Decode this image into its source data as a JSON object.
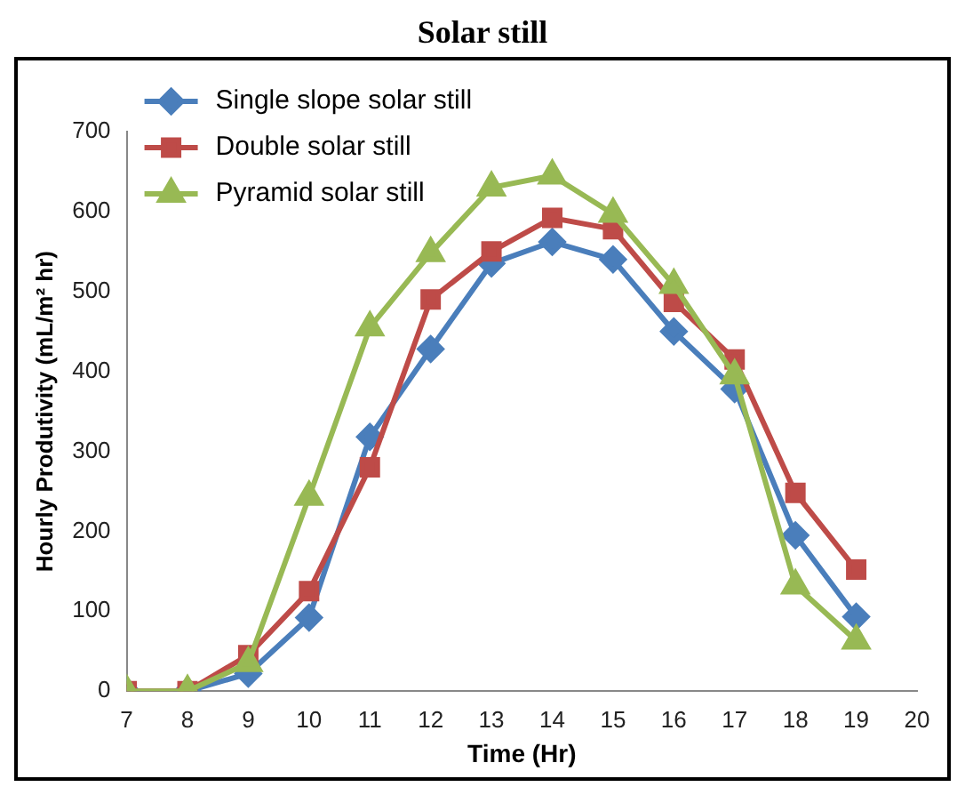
{
  "chart_data": {
    "type": "line",
    "title": "Solar still",
    "xlabel": "Time (Hr)",
    "ylabel": "Hourly Produtivity (mL/m² hr)",
    "x": [
      7,
      8,
      9,
      10,
      11,
      12,
      13,
      14,
      15,
      16,
      17,
      18,
      19
    ],
    "series": [
      {
        "name": "Single slope solar still",
        "color": "#4a7ebb",
        "marker": "diamond",
        "values": [
          0,
          0,
          22,
          92,
          318,
          428,
          535,
          562,
          540,
          450,
          378,
          195,
          93
        ]
      },
      {
        "name": "Double solar still",
        "color": "#be4b48",
        "marker": "square",
        "values": [
          0,
          0,
          45,
          125,
          280,
          490,
          550,
          592,
          578,
          487,
          415,
          248,
          152
        ]
      },
      {
        "name": "Pyramid solar still",
        "color": "#98b954",
        "marker": "triangle",
        "values": [
          0,
          0,
          35,
          243,
          455,
          548,
          630,
          645,
          597,
          508,
          395,
          132,
          63
        ]
      }
    ],
    "xlim": [
      7,
      20
    ],
    "xticks": [
      7,
      8,
      9,
      10,
      11,
      12,
      13,
      14,
      15,
      16,
      17,
      18,
      19,
      20
    ],
    "ylim": [
      0,
      700
    ],
    "yticks": [
      0,
      100,
      200,
      300,
      400,
      500,
      600,
      700
    ],
    "grid": false,
    "legend": "top left",
    "line_style": "solid"
  }
}
